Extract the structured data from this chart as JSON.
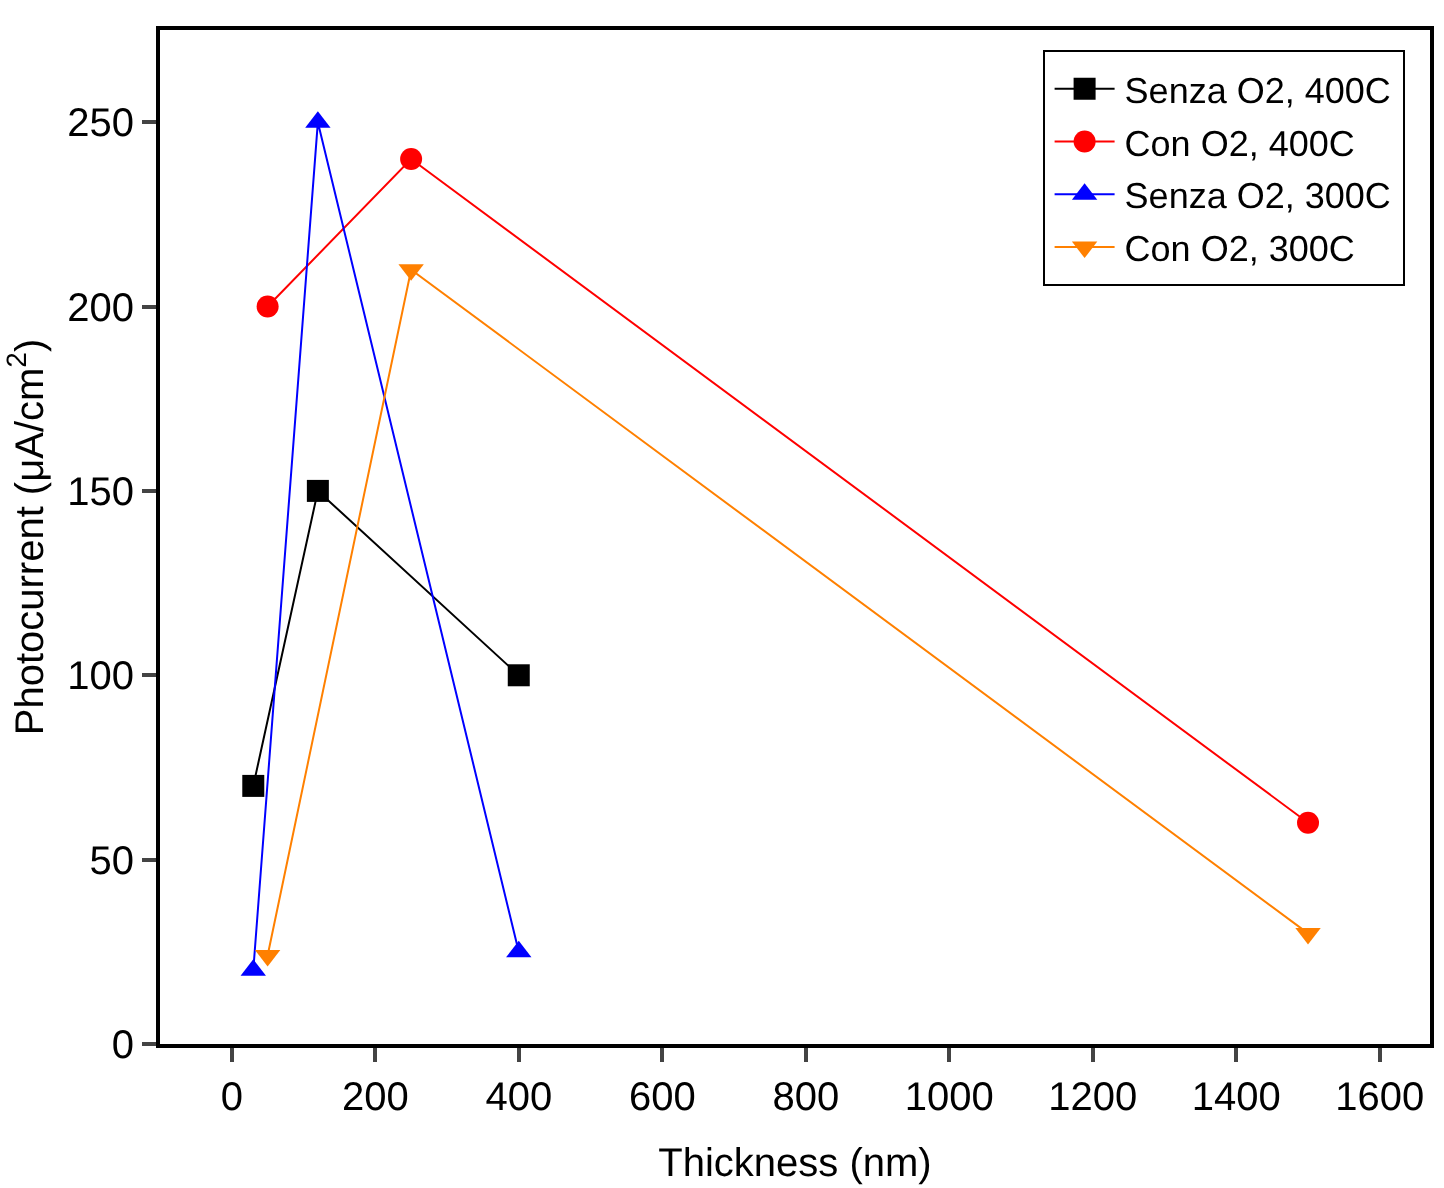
{
  "chart_data": {
    "type": "line",
    "xlabel": "Thickness (nm)",
    "ylabel": "Photocurrent (μA/cm$^{2}$)",
    "xlim": [
      -100,
      1670
    ],
    "xticks": [
      0,
      200,
      400,
      600,
      800,
      1000,
      1200,
      1400,
      1600
    ],
    "ylim": [
      0,
      275
    ],
    "yticks": [
      0,
      50,
      100,
      150,
      200,
      250
    ],
    "legend": "top right",
    "series": [
      {
        "name": "Senza O2, 400C",
        "color": "#000000",
        "marker": "square",
        "x": [
          30,
          120,
          400
        ],
        "values": [
          70,
          150,
          100
        ]
      },
      {
        "name": "Con O2, 400C",
        "color": "#ff0000",
        "marker": "circle",
        "x": [
          50,
          250,
          1500
        ],
        "values": [
          200,
          240,
          60
        ]
      },
      {
        "name": "Senza O2, 300C",
        "color": "#0000ff",
        "marker": "triangle",
        "x": [
          30,
          120,
          400
        ],
        "values": [
          20,
          250,
          25
        ]
      },
      {
        "name": "Con O2, 300C",
        "color": "#ff8000",
        "marker": "triangle-down",
        "x": [
          50,
          250,
          1500
        ],
        "values": [
          24,
          210,
          30
        ]
      }
    ]
  }
}
